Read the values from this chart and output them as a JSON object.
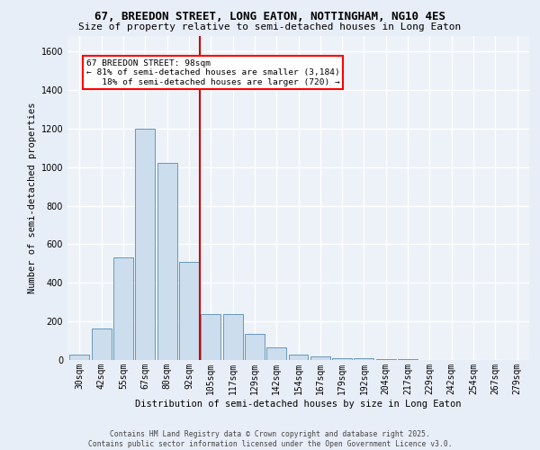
{
  "title": "67, BREEDON STREET, LONG EATON, NOTTINGHAM, NG10 4ES",
  "subtitle": "Size of property relative to semi-detached houses in Long Eaton",
  "xlabel": "Distribution of semi-detached houses by size in Long Eaton",
  "ylabel": "Number of semi-detached properties",
  "categories": [
    "30sqm",
    "42sqm",
    "55sqm",
    "67sqm",
    "80sqm",
    "92sqm",
    "105sqm",
    "117sqm",
    "129sqm",
    "142sqm",
    "154sqm",
    "167sqm",
    "179sqm",
    "192sqm",
    "204sqm",
    "217sqm",
    "229sqm",
    "242sqm",
    "254sqm",
    "267sqm",
    "279sqm"
  ],
  "values": [
    30,
    165,
    530,
    1200,
    1020,
    510,
    240,
    240,
    135,
    65,
    30,
    20,
    10,
    8,
    5,
    3,
    0,
    0,
    0,
    0,
    0
  ],
  "bar_color": "#ccdded",
  "bar_edge_color": "#6699bb",
  "highlight_line_color": "#cc0000",
  "annotation_line1": "67 BREEDON STREET: 98sqm",
  "annotation_line2": "← 81% of semi-detached houses are smaller (3,184)",
  "annotation_line3": "   18% of semi-detached houses are larger (720) →",
  "ylim": [
    0,
    1680
  ],
  "yticks": [
    0,
    200,
    400,
    600,
    800,
    1000,
    1200,
    1400,
    1600
  ],
  "footer": "Contains HM Land Registry data © Crown copyright and database right 2025.\nContains public sector information licensed under the Open Government Licence v3.0.",
  "bg_color": "#e8eef8",
  "plot_bg_color": "#edf2f8",
  "title_fontsize": 9,
  "subtitle_fontsize": 8,
  "axis_label_fontsize": 7.5,
  "tick_fontsize": 7,
  "annotation_fontsize": 6.8,
  "footer_fontsize": 5.8
}
